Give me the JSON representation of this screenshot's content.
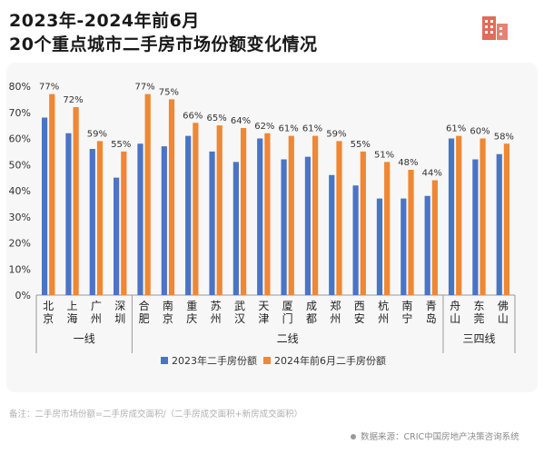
{
  "title_line1": "2023年-2024年前6月",
  "title_line2": "20个重点城市二手房市场份额变化情况",
  "logo_icon": "building-icon",
  "note": "备注：二手房市场份额=二手房成交面积/（二手房成交面积+新房成交面积）",
  "source": "数据来源：CRIC中国房地产决策咨询系统",
  "colors": {
    "series_2023": "#4a74c4",
    "series_2024h1": "#ef8733",
    "brand": "#e06c5a"
  },
  "chart_data": {
    "type": "bar",
    "ylim": [
      0,
      80
    ],
    "yticks": [
      "0%",
      "10%",
      "20%",
      "30%",
      "40%",
      "50%",
      "60%",
      "70%",
      "80%"
    ],
    "grid": false,
    "legend_position": "bottom",
    "categories": [
      "北京",
      "上海",
      "广州",
      "深圳",
      "合肥",
      "南京",
      "重庆",
      "苏州",
      "武汉",
      "天津",
      "厦门",
      "成都",
      "郑州",
      "西安",
      "杭州",
      "南宁",
      "青岛",
      "舟山",
      "东莞",
      "佛山"
    ],
    "groups": [
      {
        "label": "一线",
        "count": 4
      },
      {
        "label": "二线",
        "count": 13
      },
      {
        "label": "三四线",
        "count": 3
      }
    ],
    "series": [
      {
        "name": "2023年二手房份额",
        "values": [
          68,
          62,
          56,
          45,
          58,
          57,
          61,
          55,
          51,
          60,
          52,
          53,
          46,
          42,
          37,
          37,
          38,
          60,
          52,
          54
        ]
      },
      {
        "name": "2024年前6月二手房份额",
        "values": [
          77,
          72,
          59,
          55,
          77,
          75,
          66,
          65,
          64,
          62,
          61,
          61,
          59,
          55,
          51,
          48,
          44,
          61,
          60,
          58
        ]
      }
    ],
    "data_labels": [
      "77%",
      "72%",
      "59%",
      "55%",
      "77%",
      "75%",
      "66%",
      "65%",
      "64%",
      "62%",
      "61%",
      "61%",
      "59%",
      "55%",
      "51%",
      "48%",
      "44%",
      "61%",
      "60%",
      "58%"
    ]
  }
}
